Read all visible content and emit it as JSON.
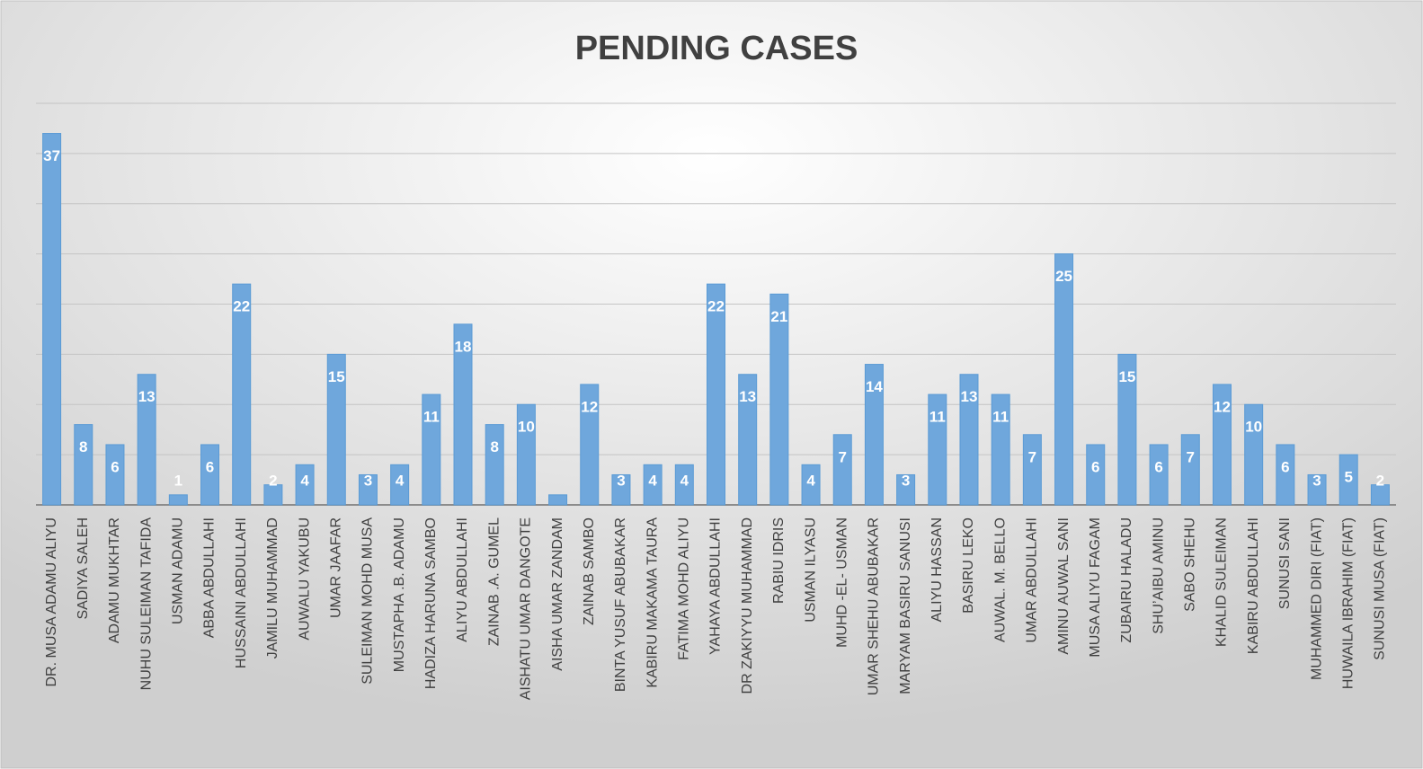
{
  "chart_data": {
    "type": "bar",
    "title": "PENDING CASES",
    "categories": [
      "DR. MUSA ADAMU ALIYU",
      "SADIYA SALEH",
      "ADAMU MUKHTAR",
      "NUHU SULEIMAN TAFIDA",
      "USMAN ADAMU",
      "ABBA ABDULLAHI",
      "HUSSAINI ABDULLAHI",
      "JAMILU MUHAMMAD",
      "AUWALU YAKUBU",
      "UMAR JAAFAR",
      "SULEIMAN MOHD MUSA",
      "MUSTAPHA .B. ADAMU",
      "HADIZA HARUNA SAMBO",
      "ALIYU ABDULLAHI",
      "ZAINAB .A. GUMEL",
      "AISHATU UMAR DANGOTE",
      "AISHA UMAR ZANDAM",
      "ZAINAB SAMBO",
      "BINTA YUSUF ABUBAKAR",
      "KABIRU MAKAMA TAURA",
      "FATIMA MOHD ALIYU",
      "YAHAYA ABDULLAHI",
      "DR ZAKIYYU MUHAMMAD",
      "RABIU IDRIS",
      "USMAN ILYASU",
      "MUHD -EL- USMAN",
      "UMAR SHEHU ABUBAKAR",
      "MARYAM BASIRU SANUSI",
      "ALIYU HASSAN",
      "BASIRU LEKO",
      "AUWAL. M. BELLO",
      "UMAR ABDULLAHI",
      "AMINU AUWAL SANI",
      "MUSA ALIYU FAGAM",
      "ZUBAIRU HALADU",
      "SHU’AIBU AMINU",
      "SABO SHEHU",
      "KHALID SULEIMAN",
      "KABIRU ABDULLAHI",
      "SUNUSI SANI",
      "MUHAMMED DIRI (FIAT)",
      "HUWAILA IBRAHIM (FIAT)",
      "SUNUSI MUSA (FIAT)"
    ],
    "values": [
      37,
      8,
      6,
      13,
      1,
      6,
      22,
      2,
      4,
      15,
      3,
      4,
      11,
      18,
      8,
      10,
      1,
      12,
      3,
      4,
      4,
      22,
      13,
      21,
      4,
      7,
      14,
      3,
      11,
      13,
      11,
      7,
      25,
      6,
      15,
      6,
      7,
      12,
      10,
      6,
      3,
      5,
      2
    ],
    "value_labels": [
      "37",
      "8",
      "6",
      "13",
      "1",
      "6",
      "22",
      "2",
      "4",
      "15",
      "3",
      "4",
      "11",
      "18",
      "8",
      "10",
      null,
      "12",
      "3",
      "4",
      "4",
      "22",
      "13",
      "21",
      "4",
      "7",
      "14",
      "3",
      "11",
      "13",
      "11",
      "7",
      "25",
      "6",
      "15",
      "6",
      "7",
      "12",
      "10",
      "6",
      "3",
      "5",
      "2"
    ],
    "color": "#6fa7dc",
    "ylim": [
      0,
      40
    ],
    "yticks": [
      0,
      5,
      10,
      15,
      20,
      25,
      30,
      35,
      40
    ],
    "grid": true
  }
}
